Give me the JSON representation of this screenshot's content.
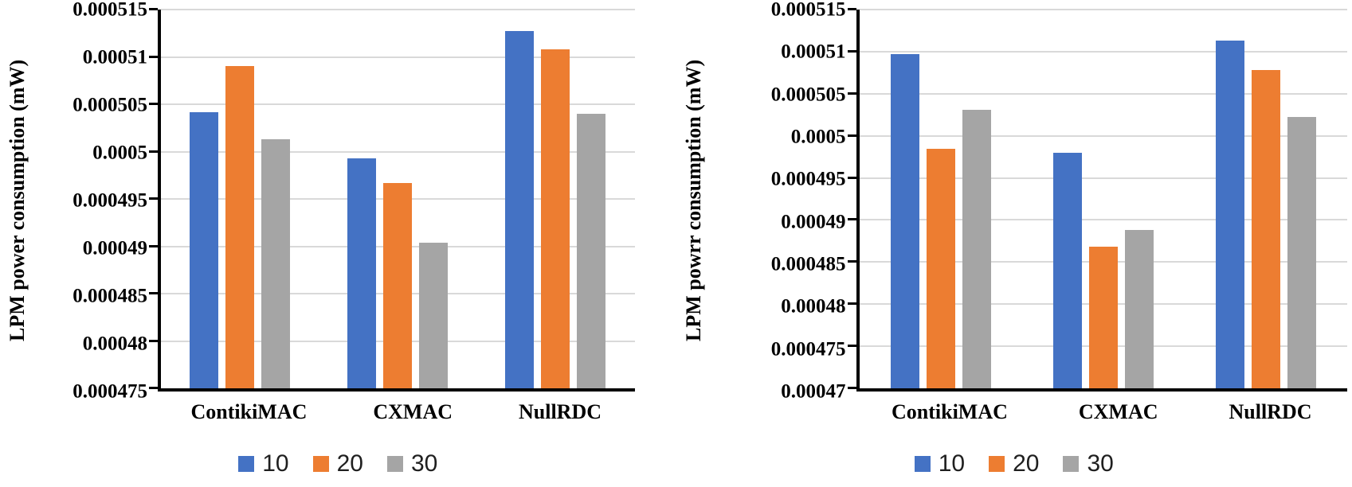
{
  "figure": {
    "background": "#ffffff",
    "axis_color": "#000000",
    "gridline_color": "#D9D9D9"
  },
  "legend": {
    "position": "bottom",
    "items": [
      {
        "label": "10",
        "color": "#4472C4"
      },
      {
        "label": "20",
        "color": "#ED7D31"
      },
      {
        "label": "30",
        "color": "#A5A5A5"
      }
    ]
  },
  "chart_data": [
    {
      "type": "bar",
      "ylabel": "LPM power consumption (mW)",
      "categories": [
        "ContikiMAC",
        "CXMAC",
        "NullRDC"
      ],
      "series": [
        {
          "name": "10",
          "color": "#4472C4",
          "values": [
            0.0005042,
            0.0004993,
            0.0005127
          ]
        },
        {
          "name": "20",
          "color": "#ED7D31",
          "values": [
            0.000509,
            0.0004967,
            0.0005108
          ]
        },
        {
          "name": "30",
          "color": "#A5A5A5",
          "values": [
            0.0005013,
            0.0004904,
            0.000504
          ]
        }
      ],
      "ylim": [
        0.000475,
        0.000515
      ],
      "ytick_step": 5e-06,
      "ytick_labels": [
        "0.000515",
        "0.00051",
        "0.000505",
        "0.0005",
        "0.000495",
        "0.00049",
        "0.000485",
        "0.00048",
        "0.000475"
      ],
      "grid": true,
      "legend_position": "bottom"
    },
    {
      "type": "bar",
      "ylabel": "LPM powrr consumption (mW)",
      "categories": [
        "ContikiMAC",
        "CXMAC",
        "NullRDC"
      ],
      "series": [
        {
          "name": "10",
          "color": "#4472C4",
          "values": [
            0.0005097,
            0.000498,
            0.0005113
          ]
        },
        {
          "name": "20",
          "color": "#ED7D31",
          "values": [
            0.0004985,
            0.0004868,
            0.0005078
          ]
        },
        {
          "name": "30",
          "color": "#A5A5A5",
          "values": [
            0.0005031,
            0.0004888,
            0.0005022
          ]
        }
      ],
      "ylim": [
        0.00047,
        0.000515
      ],
      "ytick_step": 5e-06,
      "ytick_labels": [
        "0.000515",
        "0.00051",
        "0.000505",
        "0.0005",
        "0.000495",
        "0.00049",
        "0.000485",
        "0.00048",
        "0.000475",
        "0.00047"
      ],
      "grid": true,
      "legend_position": "bottom"
    }
  ]
}
